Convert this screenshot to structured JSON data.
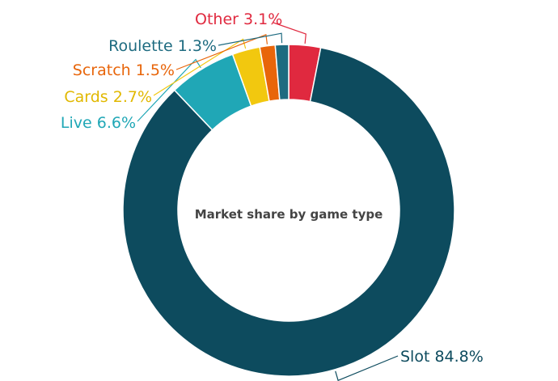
{
  "chart_data": {
    "type": "pie",
    "subtype": "donut",
    "title": "Market share by game type",
    "unit": "%",
    "slices": [
      {
        "name": "Other",
        "value": 3.1,
        "label": "Other 3.1%",
        "color": "#e0293f"
      },
      {
        "name": "Slot",
        "value": 84.8,
        "label": "Slot 84.8%",
        "color": "#0d4b5e"
      },
      {
        "name": "Live",
        "value": 6.6,
        "label": "Live 6.6%",
        "color": "#20a7b6"
      },
      {
        "name": "Cards",
        "value": 2.7,
        "label": "Cards 2.7%",
        "color": "#f2c80f"
      },
      {
        "name": "Scratch",
        "value": 1.5,
        "label": "Scratch 1.5%",
        "color": "#e8650a"
      },
      {
        "name": "Roulette",
        "value": 1.3,
        "label": "Roulette 1.3%",
        "color": "#1e6b80"
      }
    ]
  }
}
